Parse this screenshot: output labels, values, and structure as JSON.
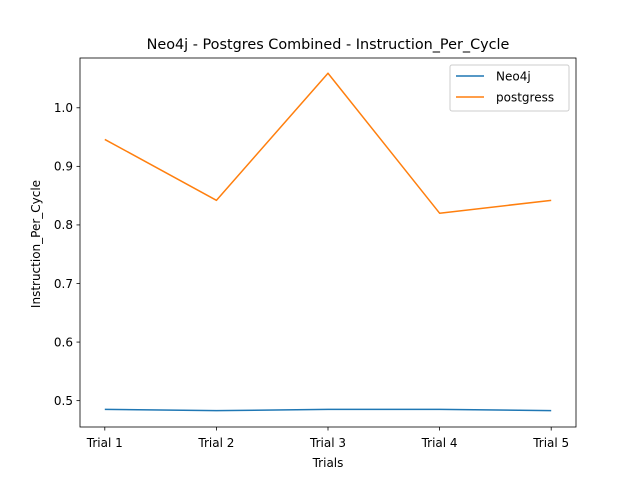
{
  "chart_data": {
    "type": "line",
    "title": "Neo4j - Postgres Combined - Instruction_Per_Cycle",
    "xlabel": "Trials",
    "ylabel": "Instruction_Per_Cycle",
    "categories": [
      "Trial 1",
      "Trial 2",
      "Trial 3",
      "Trial 4",
      "Trial 5"
    ],
    "y_ticks": [
      0.5,
      0.6,
      0.7,
      0.8,
      0.9,
      1.0
    ],
    "y_tick_labels": [
      "0.5",
      "0.6",
      "0.7",
      "0.8",
      "0.9",
      "1.0"
    ],
    "ylim": [
      0.455,
      1.085
    ],
    "grid": false,
    "legend_position": "top-right",
    "series": [
      {
        "name": "Neo4j",
        "color": "#1f77b4",
        "values": [
          0.485,
          0.483,
          0.485,
          0.485,
          0.483
        ]
      },
      {
        "name": "postgress",
        "color": "#ff7f0e",
        "values": [
          0.946,
          0.842,
          1.059,
          0.82,
          0.842
        ]
      }
    ]
  }
}
